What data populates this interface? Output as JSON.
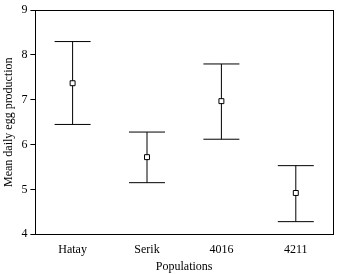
{
  "chart_data": {
    "type": "scatter",
    "x_label": "Populations",
    "y_label": "Mean daily egg production",
    "categories": [
      "Hatay",
      "Serik",
      "4016",
      "4211"
    ],
    "values": [
      7.37,
      5.72,
      6.97,
      4.92
    ],
    "error_lower": [
      6.45,
      5.15,
      6.12,
      4.28
    ],
    "error_upper": [
      8.3,
      6.28,
      7.8,
      5.53
    ],
    "color": "#000000",
    "marker": "square",
    "ylim": [
      4,
      9
    ],
    "yticks": [
      4,
      5,
      6,
      7,
      8,
      9
    ],
    "grid": false
  }
}
